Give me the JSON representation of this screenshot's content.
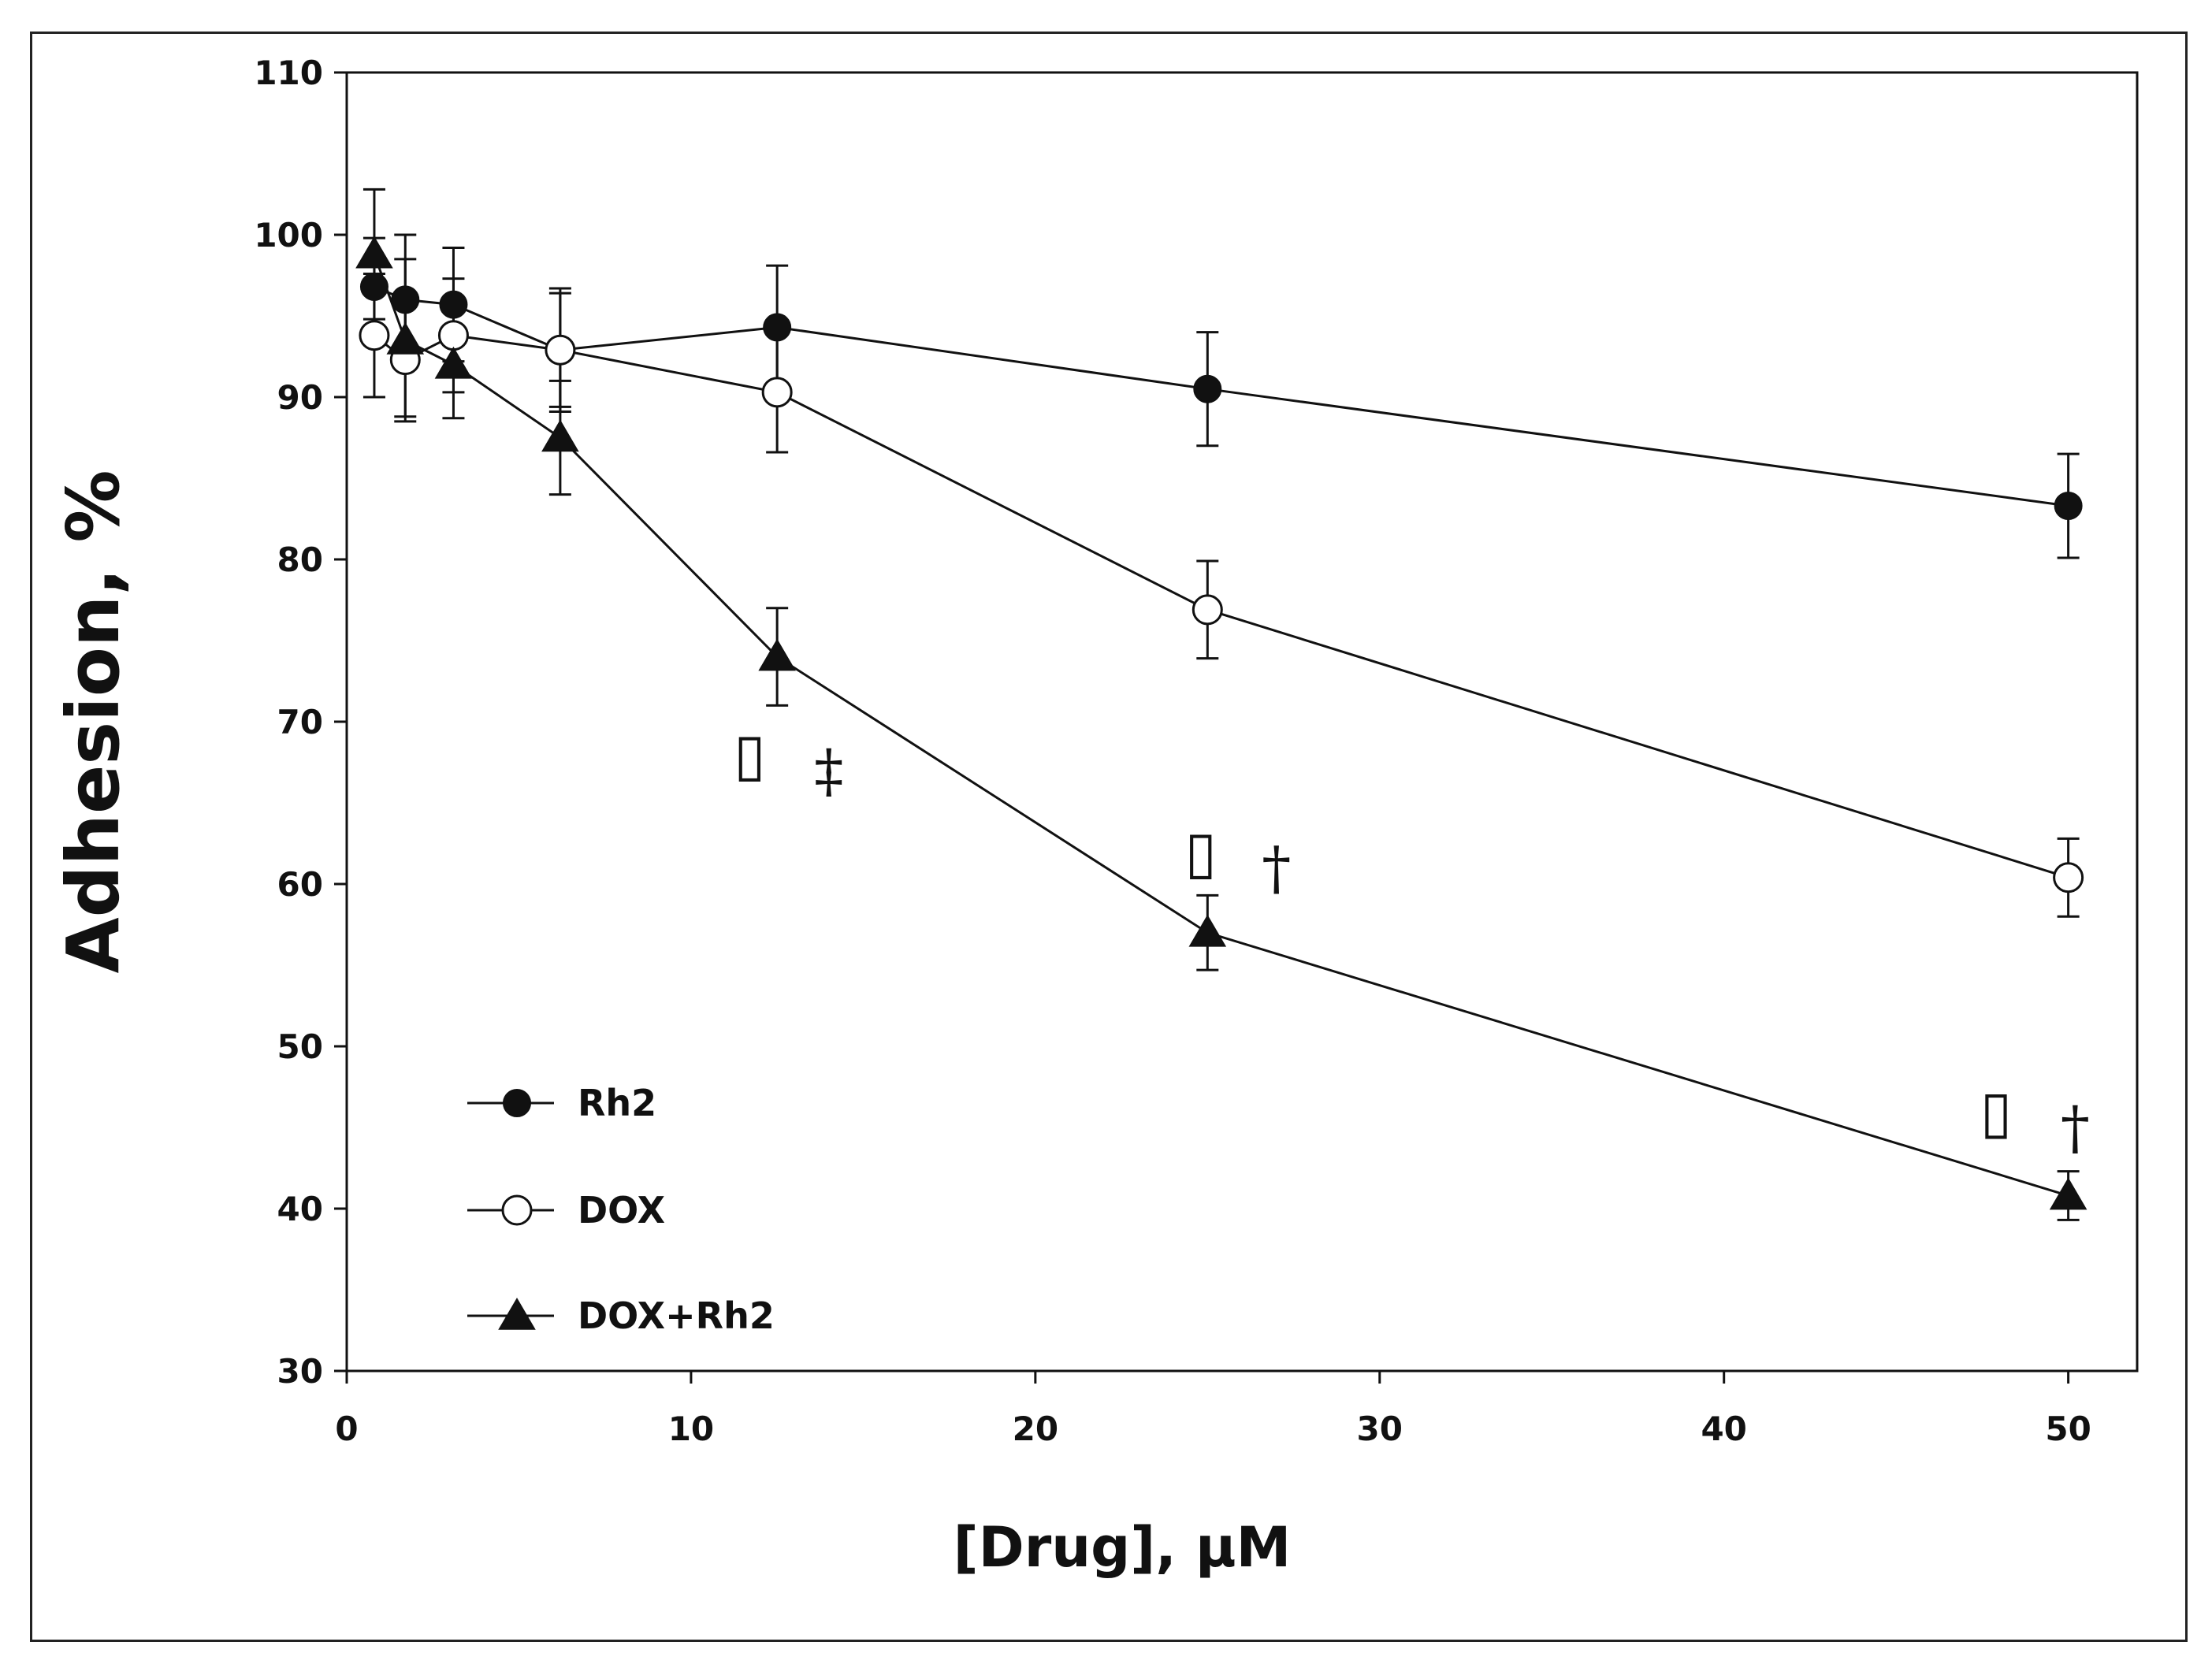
{
  "chart_data": {
    "type": "line",
    "title": "",
    "xlabel": "[Drug], μM",
    "ylabel": "Adhesion,  %",
    "xlim": [
      0,
      52
    ],
    "ylim": [
      30,
      110
    ],
    "x_ticks": [
      0,
      10,
      20,
      30,
      40,
      50
    ],
    "y_ticks": [
      30,
      40,
      50,
      60,
      70,
      80,
      90,
      100,
      110
    ],
    "grid": false,
    "legend_position": "bottom-left",
    "series": [
      {
        "name": "Rh2",
        "marker": "filled-circle",
        "x": [
          0.8,
          1.7,
          3.1,
          6.2,
          12.5,
          25,
          50
        ],
        "y": [
          96.8,
          96.0,
          95.7,
          92.9,
          94.3,
          90.5,
          83.3
        ],
        "error": [
          3.0,
          4.0,
          3.5,
          3.5,
          3.8,
          3.5,
          3.2
        ]
      },
      {
        "name": "DOX",
        "marker": "open-circle",
        "x": [
          0.8,
          1.7,
          3.1,
          6.2,
          12.5,
          25,
          50
        ],
        "y": [
          93.8,
          92.3,
          93.8,
          92.9,
          90.3,
          76.9,
          60.4
        ],
        "error": [
          3.8,
          3.5,
          3.5,
          3.8,
          3.7,
          3.0,
          2.4
        ]
      },
      {
        "name": "DOX+Rh2",
        "marker": "filled-triangle",
        "x": [
          0.8,
          1.7,
          3.1,
          6.2,
          12.5,
          25,
          50
        ],
        "y": [
          98.8,
          93.5,
          92.0,
          87.5,
          74.0,
          57.0,
          40.8
        ],
        "error": [
          4.0,
          5.0,
          3.3,
          3.5,
          3.0,
          2.3,
          1.5
        ]
      }
    ],
    "annotations": [
      {
        "x": 11.7,
        "y": 68,
        "text": "▯"
      },
      {
        "x": 14.0,
        "y": 67,
        "text": "‡"
      },
      {
        "x": 24.8,
        "y": 62,
        "text": "▯"
      },
      {
        "x": 27.0,
        "y": 61,
        "text": "†"
      },
      {
        "x": 47.9,
        "y": 46,
        "text": "▯"
      },
      {
        "x": 50.2,
        "y": 45,
        "text": "†"
      }
    ]
  },
  "colors": {
    "ink": "#111111",
    "frame": "#222222",
    "background": "#ffffff"
  }
}
